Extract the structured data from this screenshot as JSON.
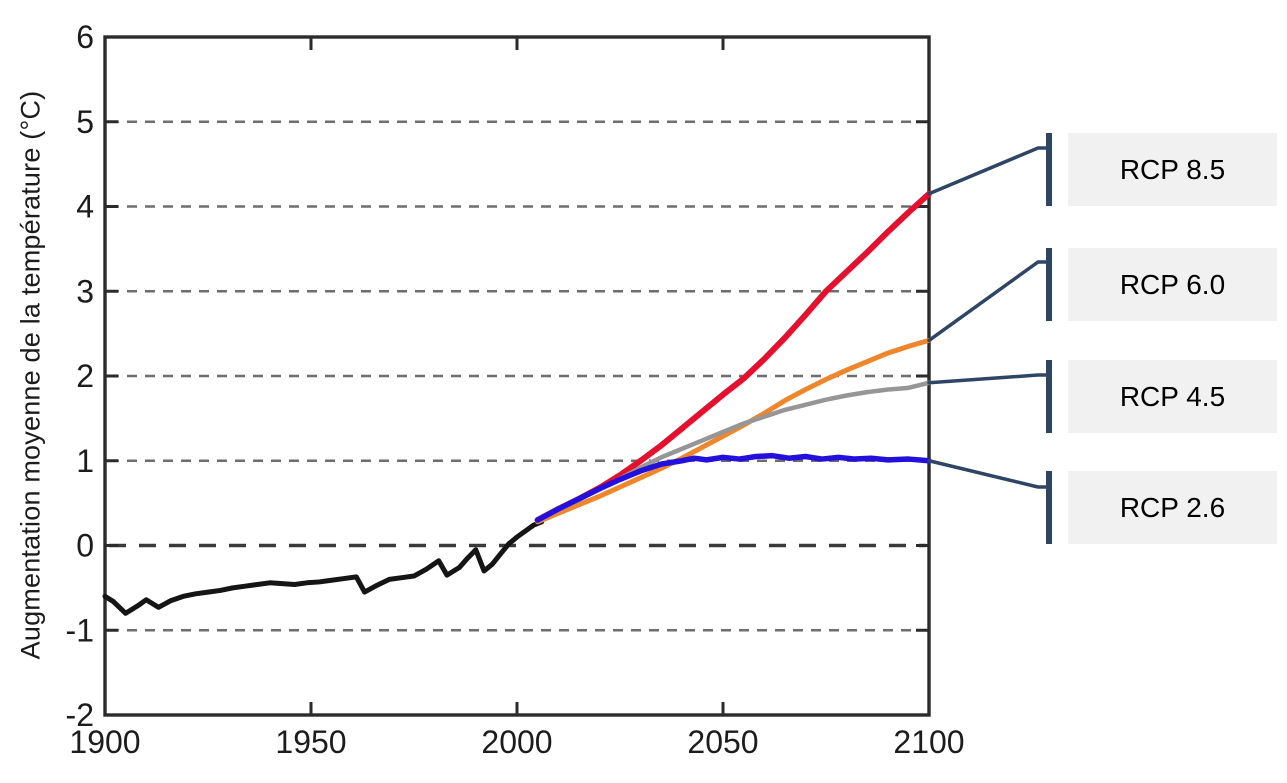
{
  "chart_data": {
    "type": "line",
    "title": "",
    "xlabel": "",
    "ylabel": "Augmentation moyenne de la température (°C)",
    "xlim": [
      1900,
      2100
    ],
    "ylim": [
      -2,
      6
    ],
    "xticks": [
      1900,
      1950,
      2000,
      2050,
      2100
    ],
    "yticks": [
      -2,
      -1,
      0,
      1,
      2,
      3,
      4,
      5,
      6
    ],
    "gridline_values": [
      -1,
      1,
      2,
      3,
      4,
      5
    ],
    "zero_line_value": 0,
    "grid_style": {
      "color": "#6e6e6e",
      "dash": "10 8",
      "zero_color": "#3a3a3a",
      "zero_dash": "17 13"
    },
    "frame_color": "#2b2b2b",
    "tick_label_color": "#1c1c1c",
    "series": [
      {
        "id": "historical",
        "name": "",
        "color": "#151515",
        "width": 5,
        "points": [
          [
            1900,
            -0.6
          ],
          [
            1902,
            -0.66
          ],
          [
            1905,
            -0.8
          ],
          [
            1908,
            -0.71
          ],
          [
            1910,
            -0.64
          ],
          [
            1913,
            -0.73
          ],
          [
            1916,
            -0.65
          ],
          [
            1919,
            -0.6
          ],
          [
            1922,
            -0.57
          ],
          [
            1925,
            -0.55
          ],
          [
            1928,
            -0.53
          ],
          [
            1931,
            -0.5
          ],
          [
            1934,
            -0.48
          ],
          [
            1937,
            -0.46
          ],
          [
            1940,
            -0.44
          ],
          [
            1943,
            -0.45
          ],
          [
            1946,
            -0.46
          ],
          [
            1949,
            -0.44
          ],
          [
            1952,
            -0.43
          ],
          [
            1955,
            -0.41
          ],
          [
            1958,
            -0.39
          ],
          [
            1961,
            -0.37
          ],
          [
            1963,
            -0.55
          ],
          [
            1966,
            -0.47
          ],
          [
            1969,
            -0.4
          ],
          [
            1972,
            -0.38
          ],
          [
            1975,
            -0.36
          ],
          [
            1978,
            -0.28
          ],
          [
            1981,
            -0.18
          ],
          [
            1983,
            -0.35
          ],
          [
            1986,
            -0.26
          ],
          [
            1988,
            -0.15
          ],
          [
            1990,
            -0.05
          ],
          [
            1992,
            -0.3
          ],
          [
            1994,
            -0.22
          ],
          [
            1996,
            -0.1
          ],
          [
            1998,
            0.02
          ],
          [
            2000,
            0.1
          ],
          [
            2002,
            0.17
          ],
          [
            2004,
            0.24
          ],
          [
            2006,
            0.28
          ]
        ]
      },
      {
        "id": "rcp85",
        "name": "RCP 8.5",
        "color": "#e50f2e",
        "width": 6,
        "points": [
          [
            2005,
            0.3
          ],
          [
            2010,
            0.43
          ],
          [
            2015,
            0.55
          ],
          [
            2020,
            0.68
          ],
          [
            2025,
            0.83
          ],
          [
            2030,
            1.0
          ],
          [
            2035,
            1.18
          ],
          [
            2040,
            1.38
          ],
          [
            2045,
            1.58
          ],
          [
            2050,
            1.78
          ],
          [
            2055,
            1.97
          ],
          [
            2060,
            2.2
          ],
          [
            2065,
            2.45
          ],
          [
            2070,
            2.72
          ],
          [
            2075,
            3.0
          ],
          [
            2080,
            3.23
          ],
          [
            2085,
            3.46
          ],
          [
            2090,
            3.7
          ],
          [
            2095,
            3.93
          ],
          [
            2100,
            4.15
          ]
        ]
      },
      {
        "id": "rcp60",
        "name": "RCP 6.0",
        "color": "#f0862c",
        "width": 5,
        "points": [
          [
            2005,
            0.28
          ],
          [
            2010,
            0.38
          ],
          [
            2015,
            0.48
          ],
          [
            2020,
            0.58
          ],
          [
            2025,
            0.69
          ],
          [
            2030,
            0.8
          ],
          [
            2035,
            0.91
          ],
          [
            2040,
            1.03
          ],
          [
            2045,
            1.16
          ],
          [
            2050,
            1.29
          ],
          [
            2055,
            1.42
          ],
          [
            2060,
            1.56
          ],
          [
            2065,
            1.71
          ],
          [
            2070,
            1.84
          ],
          [
            2075,
            1.96
          ],
          [
            2080,
            2.07
          ],
          [
            2085,
            2.17
          ],
          [
            2090,
            2.27
          ],
          [
            2095,
            2.35
          ],
          [
            2100,
            2.42
          ]
        ]
      },
      {
        "id": "rcp45",
        "name": "RCP 4.5",
        "color": "#969696",
        "width": 4.5,
        "points": [
          [
            2005,
            0.3
          ],
          [
            2010,
            0.42
          ],
          [
            2015,
            0.54
          ],
          [
            2020,
            0.66
          ],
          [
            2025,
            0.79
          ],
          [
            2030,
            0.92
          ],
          [
            2035,
            1.04
          ],
          [
            2040,
            1.14
          ],
          [
            2045,
            1.24
          ],
          [
            2050,
            1.34
          ],
          [
            2055,
            1.44
          ],
          [
            2060,
            1.52
          ],
          [
            2065,
            1.6
          ],
          [
            2070,
            1.66
          ],
          [
            2075,
            1.72
          ],
          [
            2080,
            1.77
          ],
          [
            2085,
            1.81
          ],
          [
            2090,
            1.84
          ],
          [
            2095,
            1.86
          ],
          [
            2100,
            1.92
          ]
        ]
      },
      {
        "id": "rcp26",
        "name": "RCP 2.6",
        "color": "#2310dd",
        "width": 5.5,
        "points": [
          [
            2005,
            0.3
          ],
          [
            2010,
            0.43
          ],
          [
            2015,
            0.55
          ],
          [
            2020,
            0.67
          ],
          [
            2025,
            0.78
          ],
          [
            2030,
            0.88
          ],
          [
            2035,
            0.96
          ],
          [
            2040,
            1.0
          ],
          [
            2043,
            1.03
          ],
          [
            2046,
            1.01
          ],
          [
            2050,
            1.04
          ],
          [
            2054,
            1.02
          ],
          [
            2058,
            1.05
          ],
          [
            2062,
            1.06
          ],
          [
            2066,
            1.03
          ],
          [
            2070,
            1.05
          ],
          [
            2074,
            1.02
          ],
          [
            2078,
            1.04
          ],
          [
            2082,
            1.02
          ],
          [
            2086,
            1.03
          ],
          [
            2090,
            1.01
          ],
          [
            2095,
            1.02
          ],
          [
            2100,
            1.0
          ]
        ]
      }
    ],
    "legend": {
      "position": "right",
      "box_bg": "#f1f1f1",
      "callout_color": "#2e4565",
      "entries": [
        {
          "label": "RCP 8.5",
          "series_id": "rcp85"
        },
        {
          "label": "RCP 6.0",
          "series_id": "rcp60"
        },
        {
          "label": "RCP 4.5",
          "series_id": "rcp45"
        },
        {
          "label": "RCP 2.6",
          "series_id": "rcp26"
        }
      ]
    }
  }
}
